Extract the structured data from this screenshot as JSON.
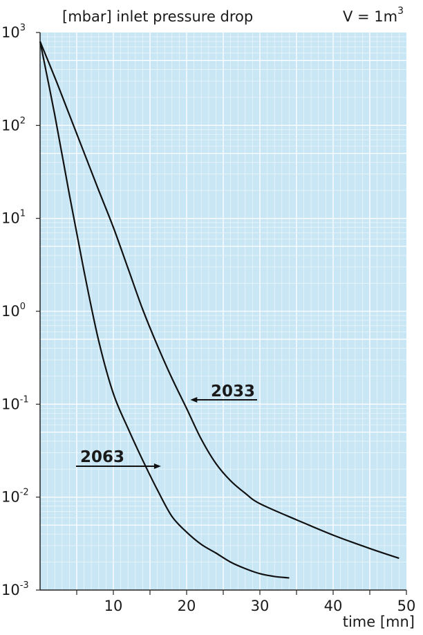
{
  "chart_data": {
    "type": "line",
    "title": "[mbar] inlet pressure drop",
    "annotation": "V = 1m",
    "annotation_exp": "3",
    "xlabel": "time [mn]",
    "ylabel": "[mbar] inlet pressure drop",
    "xlim": [
      0,
      50
    ],
    "ylim": [
      0.001,
      1000
    ],
    "yscale": "log",
    "grid": true,
    "x_ticks": [
      {
        "value": 10,
        "label": "10"
      },
      {
        "value": 20,
        "label": "20"
      },
      {
        "value": 30,
        "label": "30"
      },
      {
        "value": 40,
        "label": "40"
      },
      {
        "value": 50,
        "label": "50"
      }
    ],
    "y_ticks": [
      {
        "value": 1000,
        "base": "10",
        "exp": "3"
      },
      {
        "value": 100,
        "base": "10",
        "exp": "2"
      },
      {
        "value": 10,
        "base": "10",
        "exp": "1"
      },
      {
        "value": 1,
        "base": "10",
        "exp": "0"
      },
      {
        "value": 0.1,
        "base": "10",
        "exp": "-1"
      },
      {
        "value": 0.01,
        "base": "10",
        "exp": "-2"
      },
      {
        "value": 0.001,
        "base": "10",
        "exp": "-3"
      }
    ],
    "series": [
      {
        "name": "2033",
        "x": [
          0,
          2,
          4,
          6,
          8,
          10,
          12,
          14,
          16,
          18,
          20,
          22,
          24,
          26,
          28,
          30,
          35,
          40,
          45,
          49
        ],
        "y": [
          800,
          330,
          130,
          51,
          20,
          8,
          2.9,
          1.05,
          0.43,
          0.19,
          0.09,
          0.042,
          0.023,
          0.015,
          0.011,
          0.0085,
          0.0057,
          0.0039,
          0.0028,
          0.0022
        ]
      },
      {
        "name": "2063",
        "x": [
          0,
          2,
          4,
          6,
          8,
          10,
          12,
          14,
          16,
          18,
          20,
          22,
          24,
          26,
          28,
          30,
          32,
          34
        ],
        "y": [
          800,
          130,
          18,
          2.7,
          0.48,
          0.13,
          0.055,
          0.025,
          0.012,
          0.0062,
          0.0042,
          0.0031,
          0.0025,
          0.002,
          0.0017,
          0.0015,
          0.0014,
          0.00135
        ]
      }
    ],
    "labels": [
      {
        "text": "2033",
        "series": "2033",
        "arrow_to": {
          "x": 20.5,
          "y": 0.11
        }
      },
      {
        "text": "2063",
        "series": "2063",
        "arrow_to": {
          "x": 16.5,
          "y": 0.0235
        }
      }
    ]
  },
  "colors": {
    "plot_background": "#c9e6f5",
    "grid_minor": "#e9f5fb",
    "grid_major": "#ffffff",
    "curve": "#111111",
    "text": "#1a1a1a"
  }
}
